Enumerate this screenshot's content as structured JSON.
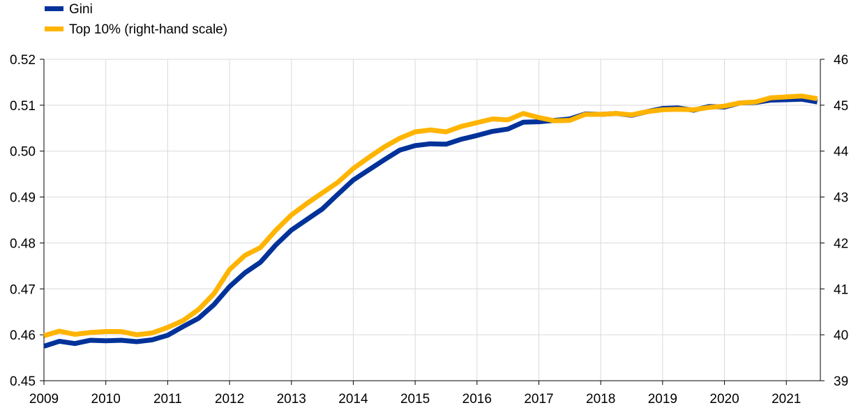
{
  "chart_data": {
    "type": "line",
    "title": "",
    "xlabel": "",
    "ylabel": "",
    "xlim": [
      2009,
      2021.55
    ],
    "x_ticks": [
      "2009",
      "2010",
      "2011",
      "2012",
      "2013",
      "2014",
      "2015",
      "2016",
      "2017",
      "2018",
      "2019",
      "2020",
      "2021"
    ],
    "ylim_left": [
      0.45,
      0.52
    ],
    "y_left_ticks": [
      "0.45",
      "0.46",
      "0.47",
      "0.48",
      "0.49",
      "0.50",
      "0.51",
      "0.52"
    ],
    "ylim_right": [
      39,
      46
    ],
    "y_right_ticks": [
      "39",
      "40",
      "41",
      "42",
      "43",
      "44",
      "45",
      "46"
    ],
    "grid": "vertical and horizontal",
    "legend_position": "top-left",
    "x": [
      2009,
      2009.25,
      2009.5,
      2009.75,
      2010,
      2010.25,
      2010.5,
      2010.75,
      2011,
      2011.25,
      2011.5,
      2011.75,
      2012,
      2012.25,
      2012.5,
      2012.75,
      2013,
      2013.25,
      2013.5,
      2013.75,
      2014,
      2014.25,
      2014.5,
      2014.75,
      2015,
      2015.25,
      2015.5,
      2015.75,
      2016,
      2016.25,
      2016.5,
      2016.75,
      2017,
      2017.25,
      2017.5,
      2017.75,
      2018,
      2018.25,
      2018.5,
      2018.75,
      2019,
      2019.25,
      2019.5,
      2019.75,
      2020,
      2020.25,
      2020.5,
      2020.75,
      2021,
      2021.25,
      2021.5
    ],
    "series": [
      {
        "name": "Gini",
        "axis": "left",
        "color": "#003299",
        "values": [
          0.4575,
          0.4586,
          0.4581,
          0.4588,
          0.4587,
          0.4588,
          0.4585,
          0.4589,
          0.4599,
          0.4618,
          0.4636,
          0.4666,
          0.4705,
          0.4735,
          0.4758,
          0.4796,
          0.4828,
          0.4851,
          0.4874,
          0.4906,
          0.4937,
          0.4959,
          0.4981,
          0.5002,
          0.5012,
          0.5016,
          0.5015,
          0.5026,
          0.5034,
          0.5043,
          0.5048,
          0.5063,
          0.5064,
          0.5067,
          0.507,
          0.5081,
          0.508,
          0.5082,
          0.5078,
          0.5086,
          0.5093,
          0.5094,
          0.5089,
          0.5097,
          0.5096,
          0.5105,
          0.5106,
          0.5111,
          0.5112,
          0.5113,
          0.5107
        ]
      },
      {
        "name": "Top 10% (right-hand scale)",
        "axis": "right",
        "color": "#FFB400",
        "values": [
          39.98,
          40.08,
          40.01,
          40.05,
          40.07,
          40.07,
          40.0,
          40.04,
          40.16,
          40.31,
          40.55,
          40.9,
          41.42,
          41.73,
          41.9,
          42.28,
          42.61,
          42.86,
          43.09,
          43.32,
          43.62,
          43.86,
          44.09,
          44.28,
          44.42,
          44.46,
          44.42,
          44.54,
          44.62,
          44.7,
          44.68,
          44.82,
          44.73,
          44.66,
          44.67,
          44.8,
          44.8,
          44.82,
          44.79,
          44.86,
          44.9,
          44.91,
          44.9,
          44.95,
          44.98,
          45.05,
          45.07,
          45.16,
          45.18,
          45.2,
          45.14
        ]
      }
    ]
  }
}
